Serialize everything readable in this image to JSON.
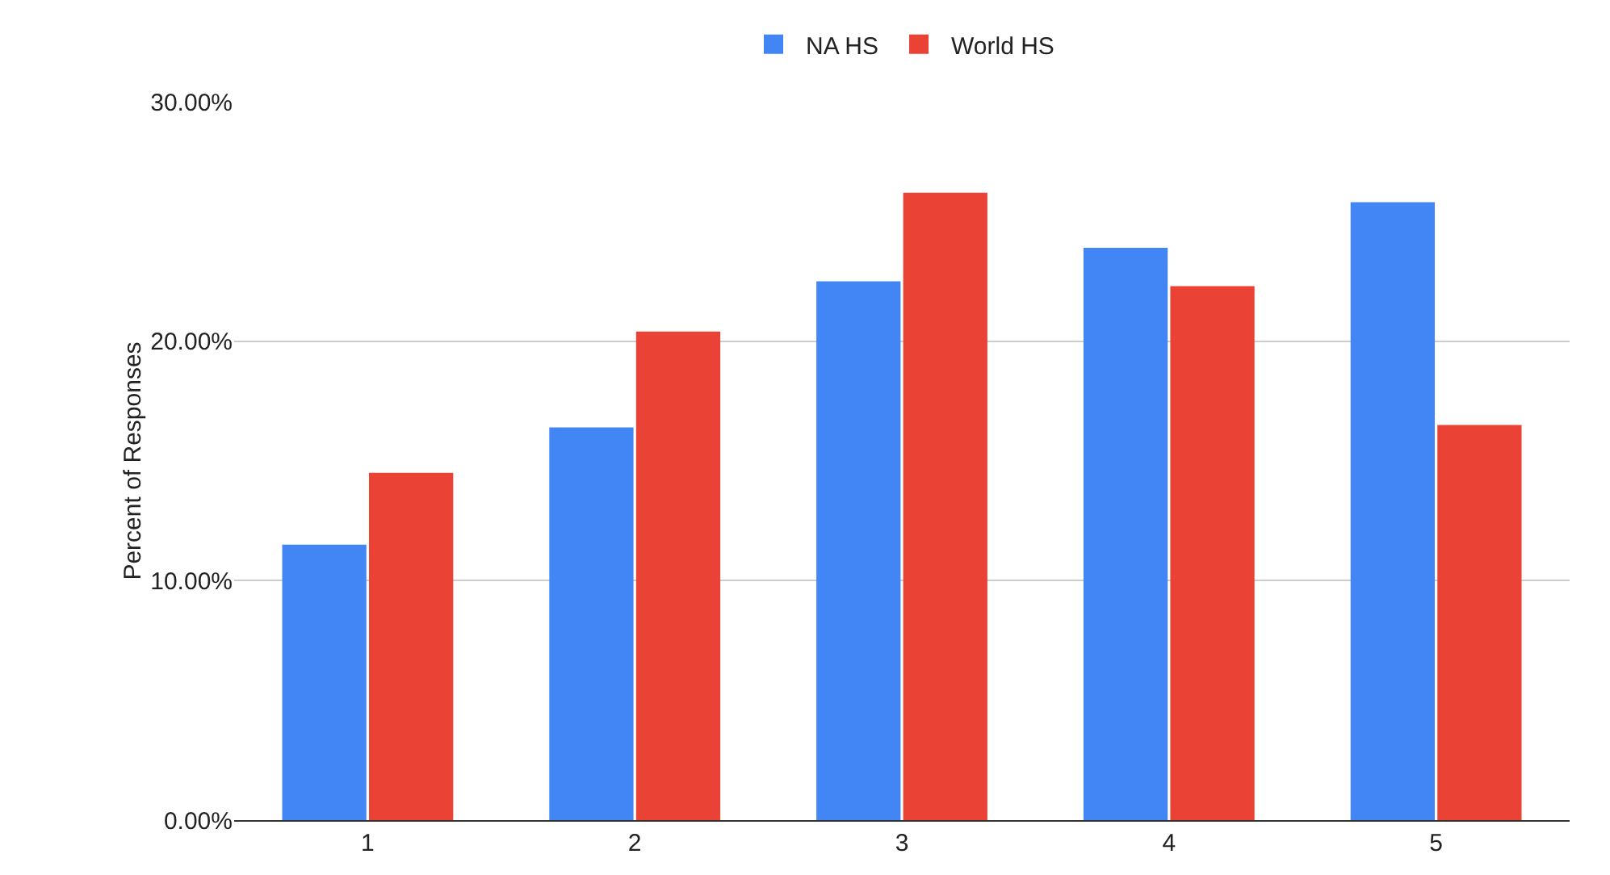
{
  "chart_data": {
    "type": "bar",
    "ylabel": "Percent of Responses",
    "categories": [
      "1",
      "2",
      "3",
      "4",
      "5"
    ],
    "series": [
      {
        "name": "NA HS",
        "color": "#4285f4",
        "values": [
          11.5,
          16.4,
          22.5,
          23.9,
          25.8
        ]
      },
      {
        "name": "World HS",
        "color": "#ea4335",
        "values": [
          14.5,
          20.4,
          26.2,
          22.3,
          16.5
        ]
      }
    ],
    "ylim": [
      0,
      30
    ],
    "yticks": [
      {
        "value": 0,
        "label": "0.00%"
      },
      {
        "value": 10,
        "label": "10.00%"
      },
      {
        "value": 20,
        "label": "20.00%"
      },
      {
        "value": 30,
        "label": "30.00%"
      }
    ],
    "grid": "y",
    "legend": "top"
  }
}
